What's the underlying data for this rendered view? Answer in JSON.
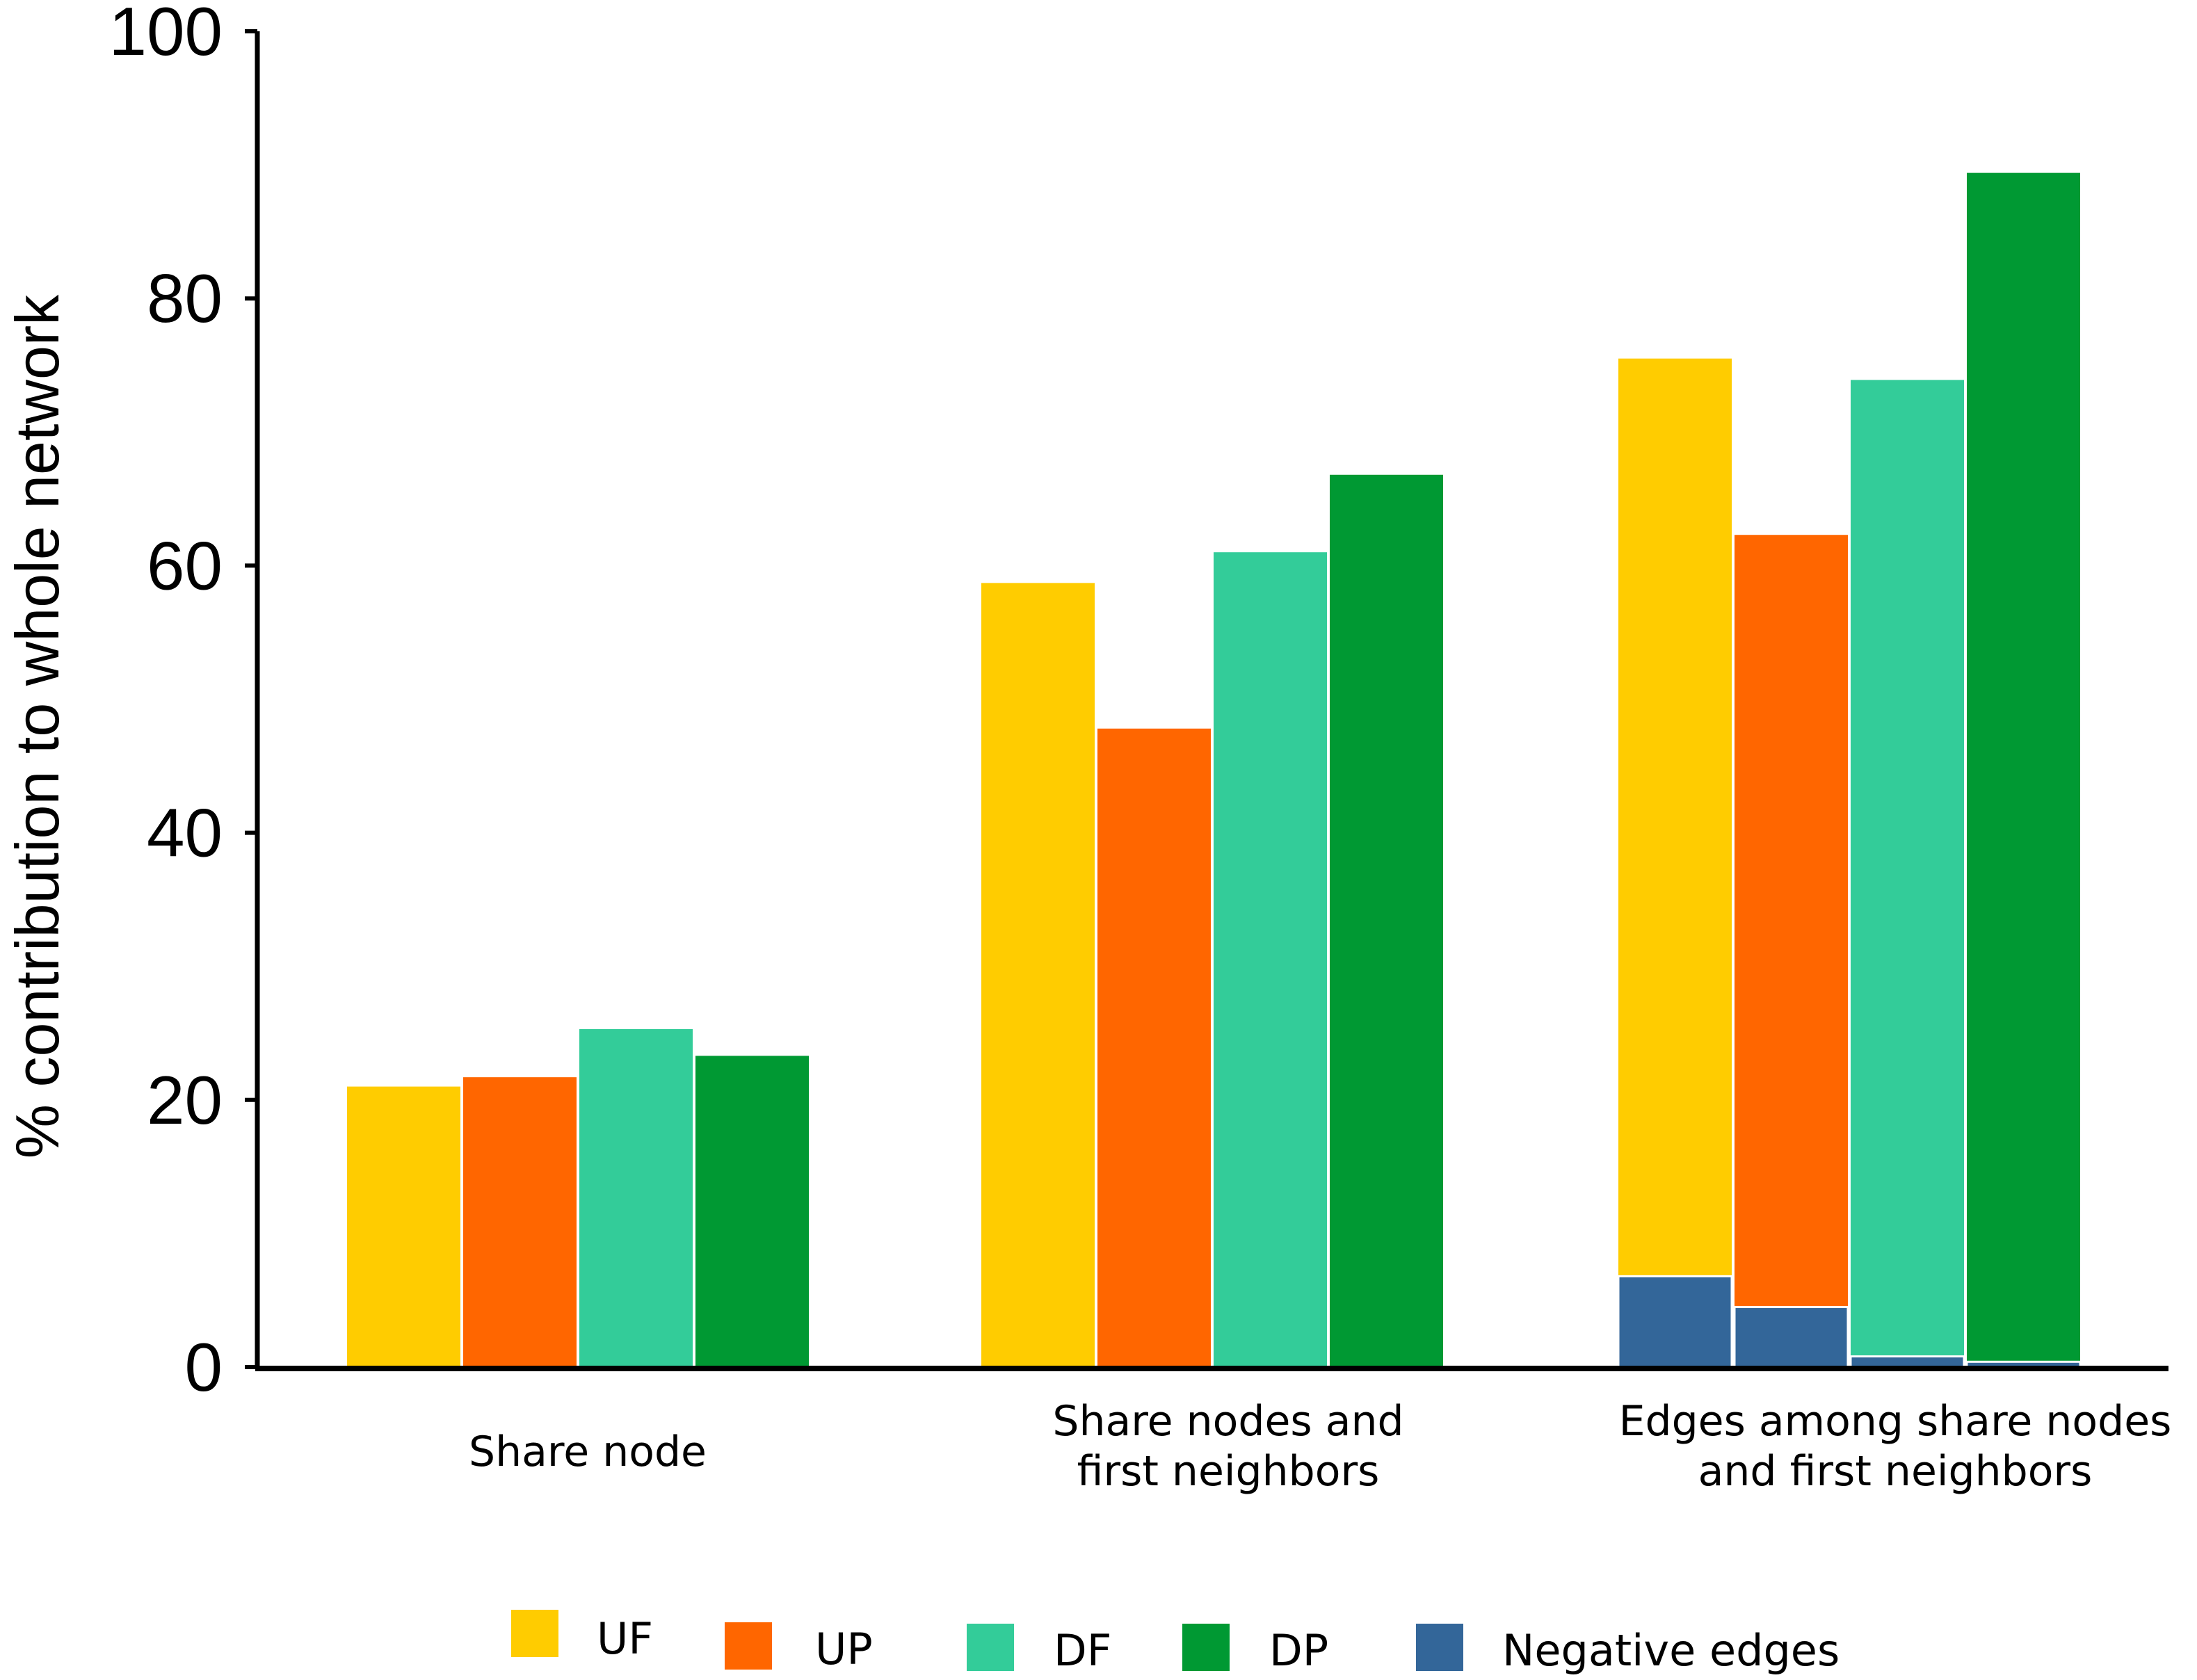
{
  "chart_data": {
    "type": "bar",
    "title": "",
    "xlabel": "",
    "ylabel": "% contribution to whole network",
    "ylim": [
      0,
      100
    ],
    "yticks": [
      0,
      20,
      40,
      60,
      80,
      100
    ],
    "grid": false,
    "legend_placement": "bottom",
    "categories": [
      [
        "Share node"
      ],
      [
        "Share nodes and",
        "first neighbors"
      ],
      [
        "Edges among share nodes",
        "and first neighbors"
      ]
    ],
    "series": [
      {
        "name": "UF",
        "color": "#FFCC00",
        "values": [
          21,
          58.7,
          75.5
        ]
      },
      {
        "name": "UP",
        "color": "#FF6600",
        "values": [
          21.7,
          47.8,
          62.3
        ]
      },
      {
        "name": "DF",
        "color": "#33CC99",
        "values": [
          25.3,
          61,
          73.9
        ]
      },
      {
        "name": "DP",
        "color": "#009933",
        "values": [
          23.3,
          66.8,
          89.4
        ]
      }
    ],
    "negative_edges": {
      "name": "Negative edges",
      "color": "#336699",
      "values": [
        null,
        null,
        [
          6.8,
          4.5,
          0.8,
          0.4
        ]
      ]
    }
  }
}
